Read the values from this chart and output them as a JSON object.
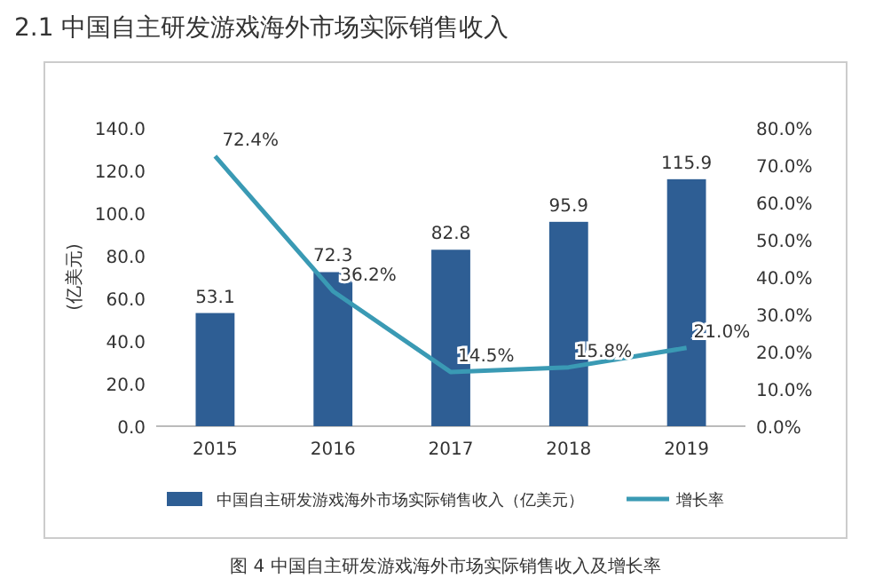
{
  "chart_data": {
    "type": "bar",
    "title": "2.1  中国自主研发游戏海外市场实际销售收入",
    "ylabel": "(亿美元)",
    "categories": [
      "2015",
      "2016",
      "2017",
      "2018",
      "2019"
    ],
    "series": [
      {
        "name": "中国自主研发游戏海外市场实际销售收入（亿美元）",
        "color": "#2e5e94",
        "values": [
          53.1,
          72.3,
          82.8,
          95.9,
          115.9
        ],
        "value_labels": [
          "53.1",
          "72.3",
          "82.8",
          "95.9",
          "115.9"
        ]
      },
      {
        "name": "增长率",
        "type": "line",
        "axis": "y2",
        "color": "#3a9ab4",
        "values": [
          72.4,
          36.2,
          14.5,
          15.8,
          21.0
        ],
        "value_labels": [
          "72.4%",
          "36.2%",
          "14.5%",
          "15.8%",
          "21.0%"
        ]
      }
    ],
    "ylim": [
      0,
      140
    ],
    "yticks": [
      {
        "value": 0,
        "label": "0.0"
      },
      {
        "value": 20,
        "label": "20.0"
      },
      {
        "value": 40,
        "label": "40.0"
      },
      {
        "value": 60,
        "label": "60.0"
      },
      {
        "value": 80,
        "label": "80.0"
      },
      {
        "value": 100,
        "label": "100.0"
      },
      {
        "value": 120,
        "label": "120.0"
      },
      {
        "value": 140,
        "label": "140.0"
      }
    ],
    "y2lim": [
      0,
      80
    ],
    "y2ticks": [
      {
        "value": 0,
        "label": "0.0%"
      },
      {
        "value": 10,
        "label": "10.0%"
      },
      {
        "value": 20,
        "label": "20.0%"
      },
      {
        "value": 30,
        "label": "30.0%"
      },
      {
        "value": 40,
        "label": "40.0%"
      },
      {
        "value": 50,
        "label": "50.0%"
      },
      {
        "value": 60,
        "label": "60.0%"
      },
      {
        "value": 70,
        "label": "70.0%"
      },
      {
        "value": 80,
        "label": "80.0%"
      }
    ],
    "legend": "bottom",
    "annotations": [
      "图 4   中国自主研发游戏海外市场实际销售收入及增长率"
    ]
  }
}
